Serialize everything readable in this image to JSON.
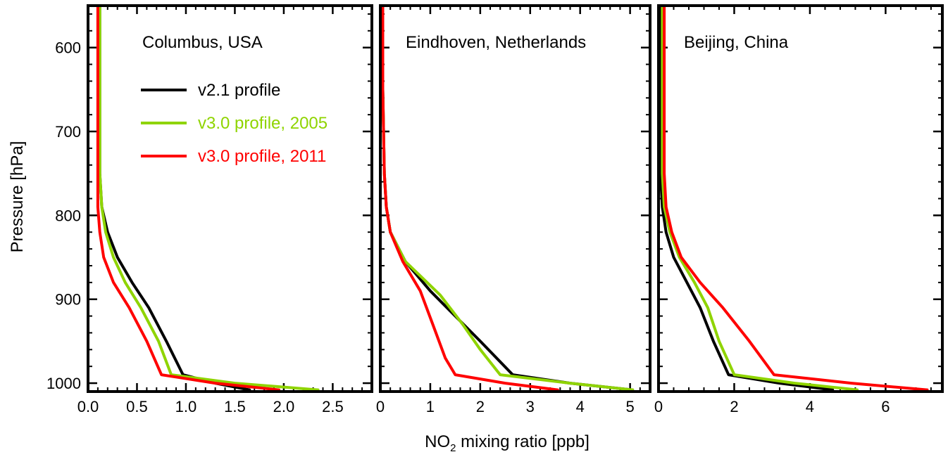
{
  "figure": {
    "ylabel": "Pressure [hPa]",
    "xlabel_main": "NO",
    "xlabel_sub": "2",
    "xlabel_rest": " mixing ratio [ppb]"
  },
  "colors": {
    "v21": "#000000",
    "v30_2005": "#8fd400",
    "v30_2011": "#ff0000",
    "axis": "#000000"
  },
  "legend": [
    {
      "key": "v21",
      "label": "v2.1 profile"
    },
    {
      "key": "v30_2005",
      "label": "v3.0 profile, 2005"
    },
    {
      "key": "v30_2011",
      "label": "v3.0 profile, 2011"
    }
  ],
  "chart_data": [
    {
      "type": "line",
      "title": "Columbus, USA",
      "xlabel": "NO2 mixing ratio [ppb]",
      "ylabel": "Pressure [hPa]",
      "xlim": [
        0,
        2.9
      ],
      "ylim": [
        1010,
        550
      ],
      "xticks": [
        "0.0",
        "0.5",
        "1.0",
        "1.5",
        "2.0",
        "2.5"
      ],
      "xtick_values": [
        0,
        0.5,
        1.0,
        1.5,
        2.0,
        2.5
      ],
      "yticks": [
        "600",
        "700",
        "800",
        "900",
        "1000"
      ],
      "ytick_values": [
        600,
        700,
        800,
        900,
        1000
      ],
      "series": [
        {
          "key": "v21",
          "name": "v2.1 profile",
          "x": [
            0.12,
            0.12,
            0.12,
            0.14,
            0.2,
            0.3,
            0.45,
            0.62,
            0.8,
            0.97,
            1.3,
            1.65
          ],
          "y": [
            550,
            650,
            750,
            790,
            820,
            850,
            880,
            910,
            950,
            990,
            1000,
            1008
          ]
        },
        {
          "key": "v30_2005",
          "name": "v3.0 profile, 2005",
          "x": [
            0.12,
            0.12,
            0.12,
            0.14,
            0.18,
            0.26,
            0.38,
            0.54,
            0.72,
            0.85,
            1.5,
            2.35
          ],
          "y": [
            550,
            650,
            750,
            790,
            820,
            850,
            880,
            910,
            950,
            990,
            1000,
            1008
          ]
        },
        {
          "key": "v30_2011",
          "name": "v3.0 profile, 2011",
          "x": [
            0.1,
            0.1,
            0.1,
            0.1,
            0.12,
            0.16,
            0.26,
            0.42,
            0.6,
            0.75,
            1.3,
            1.95
          ],
          "y": [
            550,
            650,
            750,
            790,
            820,
            850,
            880,
            910,
            950,
            990,
            1000,
            1008
          ]
        }
      ]
    },
    {
      "type": "line",
      "title": "Eindhoven, Netherlands",
      "xlabel": "NO2 mixing ratio [ppb]",
      "ylabel": "Pressure [hPa]",
      "xlim": [
        0,
        5.4
      ],
      "ylim": [
        1010,
        550
      ],
      "xticks": [
        "0",
        "1",
        "2",
        "3",
        "4",
        "5"
      ],
      "xtick_values": [
        0,
        1,
        2,
        3,
        4,
        5
      ],
      "yticks": [
        "600",
        "700",
        "800",
        "900",
        "1000"
      ],
      "ytick_values": [
        600,
        700,
        800,
        900,
        1000
      ],
      "series": [
        {
          "key": "v21",
          "name": "v2.1 profile",
          "x": [
            0.05,
            0.05,
            0.08,
            0.12,
            0.2,
            0.5,
            1.0,
            1.5,
            2.0,
            2.65,
            3.8,
            5.05
          ],
          "y": [
            550,
            650,
            750,
            790,
            820,
            855,
            890,
            920,
            950,
            990,
            1000,
            1008
          ]
        },
        {
          "key": "v30_2005",
          "name": "v3.0 profile, 2005",
          "x": [
            0.05,
            0.05,
            0.08,
            0.12,
            0.2,
            0.5,
            1.2,
            1.65,
            2.0,
            2.4,
            3.8,
            5.05
          ],
          "y": [
            550,
            650,
            750,
            790,
            820,
            855,
            895,
            930,
            960,
            990,
            1000,
            1008
          ]
        },
        {
          "key": "v30_2011",
          "name": "v3.0 profile, 2011",
          "x": [
            0.05,
            0.05,
            0.08,
            0.12,
            0.2,
            0.45,
            0.8,
            1.05,
            1.3,
            1.5,
            2.5,
            3.55
          ],
          "y": [
            550,
            650,
            750,
            790,
            820,
            855,
            890,
            930,
            970,
            990,
            1000,
            1008
          ]
        }
      ]
    },
    {
      "type": "line",
      "title": "Beijing, China",
      "xlabel": "NO2 mixing ratio [ppb]",
      "ylabel": "Pressure [hPa]",
      "xlim": [
        0,
        7.5
      ],
      "ylim": [
        1010,
        550
      ],
      "xticks": [
        "0",
        "2",
        "4",
        "6"
      ],
      "xtick_values": [
        0,
        2,
        4,
        6
      ],
      "yticks": [
        "600",
        "700",
        "800",
        "900",
        "1000"
      ],
      "ytick_values": [
        600,
        700,
        800,
        900,
        1000
      ],
      "series": [
        {
          "key": "v21",
          "name": "v2.1 profile",
          "x": [
            0.05,
            0.05,
            0.05,
            0.1,
            0.2,
            0.4,
            0.75,
            1.1,
            1.45,
            1.85,
            3.2,
            4.6
          ],
          "y": [
            550,
            650,
            750,
            790,
            820,
            850,
            880,
            910,
            950,
            990,
            1000,
            1008
          ]
        },
        {
          "key": "v30_2005",
          "name": "v3.0 profile, 2005",
          "x": [
            0.1,
            0.1,
            0.1,
            0.15,
            0.3,
            0.55,
            0.95,
            1.3,
            1.6,
            2.0,
            3.6,
            5.25
          ],
          "y": [
            550,
            650,
            750,
            790,
            820,
            850,
            880,
            910,
            950,
            990,
            1000,
            1008
          ]
        },
        {
          "key": "v30_2011",
          "name": "v3.0 profile, 2011",
          "x": [
            0.15,
            0.15,
            0.15,
            0.2,
            0.35,
            0.6,
            1.1,
            1.7,
            2.4,
            3.05,
            5.1,
            7.1
          ],
          "y": [
            550,
            650,
            750,
            790,
            820,
            850,
            880,
            910,
            950,
            990,
            1000,
            1008
          ]
        }
      ]
    }
  ]
}
